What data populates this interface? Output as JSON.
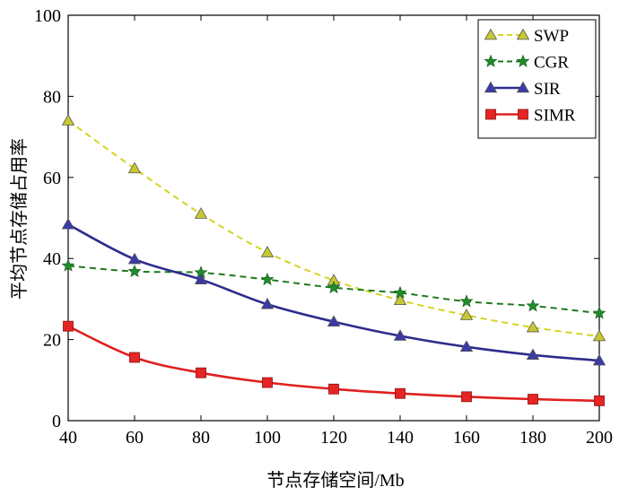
{
  "chart_data": {
    "type": "line",
    "title": "",
    "xlabel": "节点存储空间/Mb",
    "ylabel": "平均节点存储占用率",
    "xlim": [
      40,
      200
    ],
    "ylim": [
      0,
      100
    ],
    "xticks": [
      40,
      60,
      80,
      100,
      120,
      140,
      160,
      180,
      200
    ],
    "yticks": [
      0,
      20,
      40,
      60,
      80,
      100
    ],
    "grid": false,
    "legend_position": "top-right",
    "x": [
      40,
      60,
      80,
      100,
      120,
      140,
      160,
      180,
      200
    ],
    "series": [
      {
        "name": "SWP",
        "marker": "triangle",
        "line": "dashed",
        "color": "#d4d41e",
        "marker_fill": "#c8c832",
        "values": [
          74,
          62.2,
          51,
          41.5,
          34.6,
          29.7,
          26,
          23,
          20.8
        ]
      },
      {
        "name": "CGR",
        "marker": "star",
        "line": "dashed",
        "color": "#1e7a1e",
        "marker_fill": "#1e8c2a",
        "values": [
          38.2,
          36.8,
          36.5,
          34.8,
          32.8,
          31.5,
          29.4,
          28.3,
          26.5
        ]
      },
      {
        "name": "SIR",
        "marker": "triangle",
        "line": "solid",
        "color": "#2e2c8c",
        "marker_fill": "#3a3aa8",
        "values": [
          48.4,
          39.8,
          34.8,
          28.7,
          24.4,
          20.9,
          18.2,
          16.2,
          14.8
        ]
      },
      {
        "name": "SIMR",
        "marker": "square",
        "line": "solid",
        "color": "#e02020",
        "marker_fill": "#e52424",
        "values": [
          23.3,
          15.6,
          11.8,
          9.4,
          7.8,
          6.7,
          5.9,
          5.3,
          4.9
        ]
      }
    ]
  }
}
